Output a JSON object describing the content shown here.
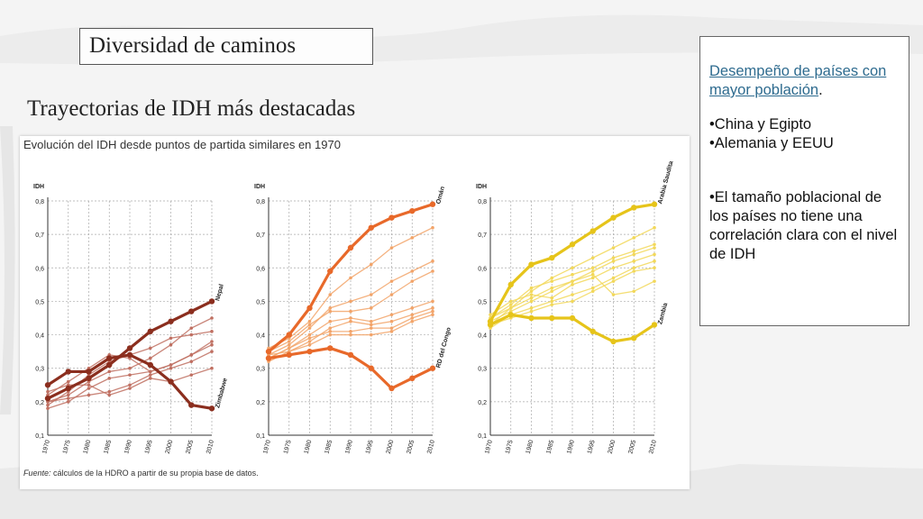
{
  "slide": {
    "title": "Diversidad de caminos",
    "subtitle": "Trayectorias de IDH más destacadas"
  },
  "figure": {
    "title": "Evolución del IDH desde puntos de partida similares en 1970",
    "source_label": "Fuente:",
    "source_text": "cálculos de la HDRO a partir de su propia base de datos."
  },
  "side_panel": {
    "heading": "Desempeño de países con mayor población",
    "heading_end": ".",
    "bullets": [
      "•China y  Egipto",
      "•Alemania y EEUU"
    ],
    "note": "•El tamaño poblacional de los países no tiene una correlación clara con el nivel de IDH"
  },
  "colors": {
    "panel1": "#8b2e1e",
    "panel1_light": "#c07062",
    "panel2": "#e8692a",
    "panel2_light": "#f2a46a",
    "panel3": "#e6c41a",
    "panel3_light": "#f2d85a"
  },
  "chart_data": [
    {
      "type": "line",
      "ylabel": "IDH",
      "x": [
        1970,
        1975,
        1980,
        1985,
        1990,
        1995,
        2000,
        2005,
        2010
      ],
      "ylim": [
        0.1,
        0.8
      ],
      "yticks": [
        "0,1",
        "0,2",
        "0,3",
        "0,4",
        "0,5",
        "0,6",
        "0,7",
        "0,8"
      ],
      "grid": true,
      "series": [
        {
          "name": "Nepal",
          "highlight": true,
          "values": [
            0.21,
            0.24,
            0.27,
            0.31,
            0.36,
            0.41,
            0.44,
            0.47,
            0.5
          ]
        },
        {
          "name": "Zimbabwe",
          "highlight": true,
          "values": [
            0.25,
            0.29,
            0.29,
            0.33,
            0.34,
            0.31,
            0.26,
            0.19,
            0.18
          ]
        },
        {
          "values": [
            0.2,
            0.22,
            0.26,
            0.29,
            0.3,
            0.33,
            0.37,
            0.42,
            0.45
          ]
        },
        {
          "values": [
            0.19,
            0.23,
            0.28,
            0.32,
            0.34,
            0.36,
            0.39,
            0.4,
            0.41
          ]
        },
        {
          "values": [
            0.22,
            0.26,
            0.3,
            0.34,
            0.33,
            0.29,
            0.31,
            0.34,
            0.38
          ]
        },
        {
          "values": [
            0.18,
            0.2,
            0.24,
            0.27,
            0.28,
            0.29,
            0.31,
            0.34,
            0.37
          ]
        },
        {
          "values": [
            0.2,
            0.21,
            0.22,
            0.23,
            0.25,
            0.28,
            0.3,
            0.32,
            0.35
          ]
        },
        {
          "values": [
            0.23,
            0.25,
            0.25,
            0.22,
            0.24,
            0.27,
            0.26,
            0.28,
            0.3
          ]
        }
      ],
      "labels": [
        "Nepal",
        "Zimbabwe"
      ]
    },
    {
      "type": "line",
      "ylabel": "IDH",
      "x": [
        1970,
        1975,
        1980,
        1985,
        1990,
        1995,
        2000,
        2005,
        2010
      ],
      "ylim": [
        0.1,
        0.8
      ],
      "yticks": [
        "0,1",
        "0,2",
        "0,3",
        "0,4",
        "0,5",
        "0,6",
        "0,7",
        "0,8"
      ],
      "grid": true,
      "series": [
        {
          "name": "Omán",
          "highlight": true,
          "values": [
            0.35,
            0.4,
            0.48,
            0.59,
            0.66,
            0.72,
            0.75,
            0.77,
            0.79
          ]
        },
        {
          "name": "RD del Congo",
          "highlight": true,
          "values": [
            0.33,
            0.34,
            0.35,
            0.36,
            0.34,
            0.3,
            0.24,
            0.27,
            0.3
          ]
        },
        {
          "values": [
            0.36,
            0.39,
            0.44,
            0.52,
            0.57,
            0.61,
            0.66,
            0.69,
            0.72
          ]
        },
        {
          "values": [
            0.34,
            0.37,
            0.42,
            0.48,
            0.5,
            0.52,
            0.56,
            0.59,
            0.62
          ]
        },
        {
          "values": [
            0.35,
            0.38,
            0.43,
            0.47,
            0.47,
            0.48,
            0.52,
            0.56,
            0.59
          ]
        },
        {
          "values": [
            0.33,
            0.36,
            0.4,
            0.44,
            0.45,
            0.44,
            0.46,
            0.48,
            0.5
          ]
        },
        {
          "values": [
            0.32,
            0.35,
            0.38,
            0.42,
            0.44,
            0.43,
            0.44,
            0.46,
            0.48
          ]
        },
        {
          "values": [
            0.34,
            0.35,
            0.37,
            0.4,
            0.4,
            0.4,
            0.41,
            0.44,
            0.46
          ]
        },
        {
          "values": [
            0.33,
            0.36,
            0.39,
            0.41,
            0.41,
            0.42,
            0.42,
            0.45,
            0.47
          ]
        }
      ],
      "labels": [
        "Omán",
        "RD del Congo"
      ]
    },
    {
      "type": "line",
      "ylabel": "IDH",
      "x": [
        1970,
        1975,
        1980,
        1985,
        1990,
        1995,
        2000,
        2005,
        2010
      ],
      "ylim": [
        0.1,
        0.8
      ],
      "yticks": [
        "0,1",
        "0,2",
        "0,3",
        "0,4",
        "0,5",
        "0,6",
        "0,7",
        "0,8"
      ],
      "grid": true,
      "series": [
        {
          "name": "Arabia Saudita",
          "highlight": true,
          "values": [
            0.44,
            0.55,
            0.61,
            0.63,
            0.67,
            0.71,
            0.75,
            0.78,
            0.79
          ]
        },
        {
          "name": "Zambia",
          "highlight": true,
          "values": [
            0.43,
            0.46,
            0.45,
            0.45,
            0.45,
            0.41,
            0.38,
            0.39,
            0.43
          ]
        },
        {
          "values": [
            0.43,
            0.48,
            0.53,
            0.57,
            0.6,
            0.63,
            0.66,
            0.69,
            0.72
          ]
        },
        {
          "values": [
            0.45,
            0.49,
            0.54,
            0.56,
            0.58,
            0.6,
            0.63,
            0.65,
            0.67
          ]
        },
        {
          "values": [
            0.44,
            0.47,
            0.5,
            0.53,
            0.56,
            0.59,
            0.62,
            0.64,
            0.66
          ]
        },
        {
          "values": [
            0.46,
            0.5,
            0.52,
            0.51,
            0.55,
            0.57,
            0.6,
            0.62,
            0.64
          ]
        },
        {
          "values": [
            0.42,
            0.46,
            0.48,
            0.5,
            0.52,
            0.54,
            0.57,
            0.6,
            0.62
          ]
        },
        {
          "values": [
            0.43,
            0.45,
            0.47,
            0.49,
            0.5,
            0.53,
            0.56,
            0.59,
            0.6
          ]
        },
        {
          "values": [
            0.45,
            0.48,
            0.51,
            0.54,
            0.56,
            0.58,
            0.52,
            0.53,
            0.56
          ]
        }
      ],
      "labels": [
        "Arabia Saudita",
        "Zambia"
      ]
    }
  ]
}
